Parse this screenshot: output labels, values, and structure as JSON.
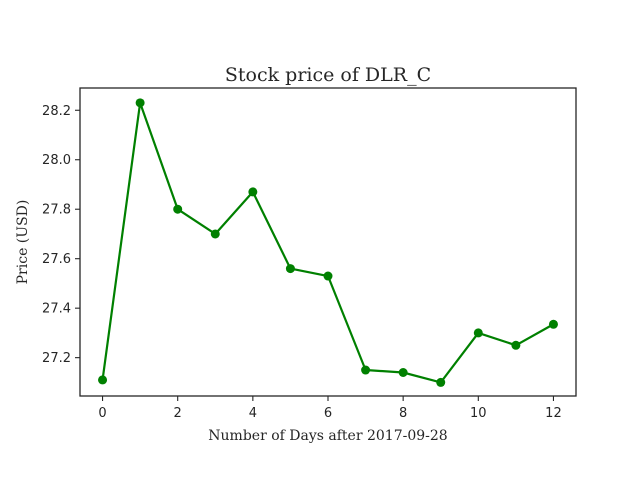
{
  "chart_data": {
    "type": "line",
    "title": "Stock price of DLR_C",
    "xlabel": "Number of Days after 2017-09-28",
    "ylabel": "Price (USD)",
    "xlim": [
      -0.6,
      12.6
    ],
    "ylim": [
      27.045,
      28.29
    ],
    "xticks": [
      0,
      2,
      4,
      6,
      8,
      10,
      12
    ],
    "yticks": [
      27.2,
      27.4,
      27.6,
      27.8,
      28.0,
      28.2
    ],
    "ytick_labels": [
      "27.2",
      "27.4",
      "27.6",
      "27.8",
      "28.0",
      "28.2"
    ],
    "grid": false,
    "series": [
      {
        "color": "#008000",
        "marker": "circle",
        "x": [
          0,
          1,
          2,
          3,
          4,
          5,
          6,
          7,
          8,
          9,
          10,
          11,
          12
        ],
        "values": [
          27.11,
          28.23,
          27.8,
          27.7,
          27.87,
          27.56,
          27.53,
          27.15,
          27.14,
          27.1,
          27.3,
          27.25,
          27.335
        ]
      }
    ]
  }
}
